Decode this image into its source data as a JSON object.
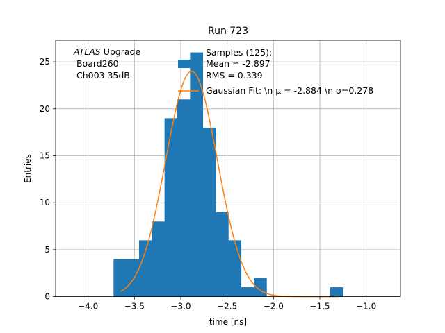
{
  "chart_data": {
    "type": "bar",
    "title": "Run 723",
    "xlabel": "time [ns]",
    "ylabel": "Entries",
    "xlim": [
      -4.35,
      -0.63
    ],
    "ylim": [
      0,
      27.3
    ],
    "grid": true,
    "xticks": [
      -4.0,
      -3.5,
      -3.0,
      -2.5,
      -2.0,
      -1.5,
      -1.0
    ],
    "xtick_labels": [
      "−4.0",
      "−3.5",
      "−3.0",
      "−2.5",
      "−2.0",
      "−1.5",
      "−1.0"
    ],
    "yticks": [
      0,
      5,
      10,
      15,
      20,
      25
    ],
    "ytick_labels": [
      "0",
      "5",
      "10",
      "15",
      "20",
      "25"
    ],
    "histogram": {
      "bin_width": 0.1375,
      "bins": [
        {
          "x0": -3.725,
          "count": 4
        },
        {
          "x0": -3.5875,
          "count": 4
        },
        {
          "x0": -3.45,
          "count": 6
        },
        {
          "x0": -3.3125,
          "count": 8
        },
        {
          "x0": -3.175,
          "count": 19
        },
        {
          "x0": -3.0375,
          "count": 21
        },
        {
          "x0": -2.9,
          "count": 26
        },
        {
          "x0": -2.7625,
          "count": 18
        },
        {
          "x0": -2.625,
          "count": 9
        },
        {
          "x0": -2.4875,
          "count": 6
        },
        {
          "x0": -2.35,
          "count": 1
        },
        {
          "x0": -2.2125,
          "count": 2
        },
        {
          "x0": -1.3875,
          "count": 1
        }
      ],
      "color": "#1f77b4"
    },
    "fit": {
      "mu": -2.884,
      "sigma": 0.278,
      "amplitude": 24.0,
      "x_range": [
        -3.65,
        -1.3
      ],
      "color": "#ff7f0e"
    },
    "annotation": {
      "line1_italic": "ATLAS",
      "line1_rest": " Upgrade",
      "line2": " Board260",
      "line3": " Ch003 35dB"
    },
    "legend": {
      "placement": "top-right",
      "samples": [
        " Samples (125):",
        " Mean = -2.897",
        " RMS = 0.339"
      ],
      "fit": " Gaussian Fit: \\n μ = -2.884 \\n σ=0.278"
    }
  }
}
